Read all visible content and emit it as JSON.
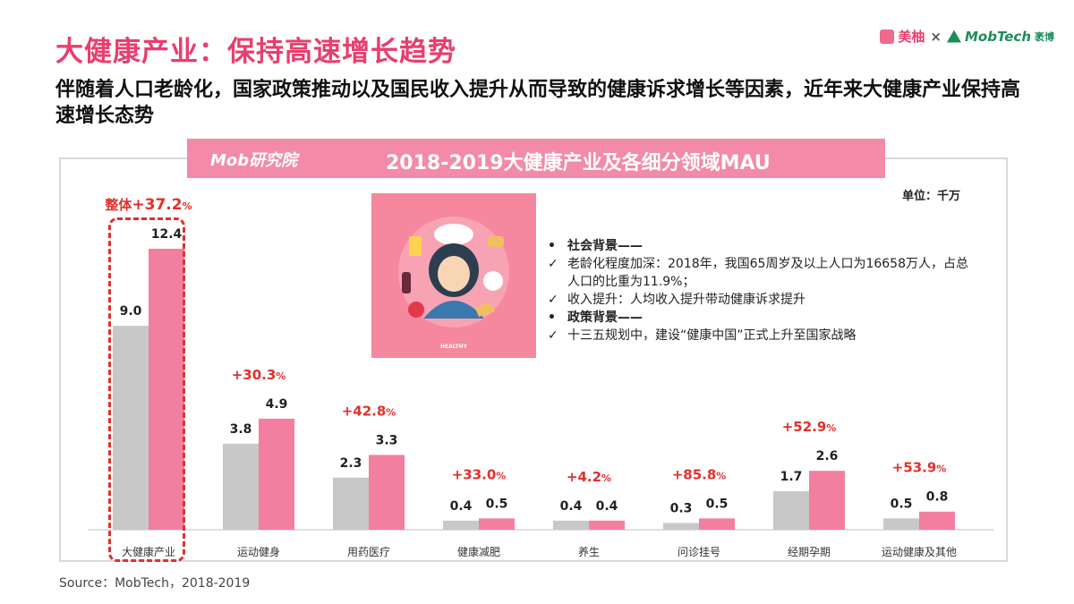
{
  "header": {
    "title": "大健康产业：保持高速增长趋势",
    "subtitle": "伴随着人口老龄化，国家政策推动以及国民收入提升从而导致的健康诉求增长等因素，近年来大健康产业保持高速增长态势"
  },
  "logos": {
    "partner": "美柚",
    "separator": "×",
    "brand": "MobTech",
    "brand_suffix": "袤博"
  },
  "banner": {
    "logo_text": "Mob研究院",
    "title": "2018-2019大健康产业及各细分领域MAU"
  },
  "unit": "单位：千万",
  "illustration": {
    "caption": "HEALTHY"
  },
  "notes": [
    {
      "marker": "•",
      "text": "社会背景——",
      "bold": true
    },
    {
      "marker": "✓",
      "text": "老龄化程度加深：2018年，我国65周岁及以上人口为16658万人，占总人口的比重为11.9%；",
      "bold": false
    },
    {
      "marker": "✓",
      "text": "收入提升：人均收入提升带动健康诉求提升",
      "bold": false
    },
    {
      "marker": "•",
      "text": "政策背景——",
      "bold": true
    },
    {
      "marker": "✓",
      "text": "十三五规划中，建设“健康中国”正式上升至国家战略",
      "bold": false
    }
  ],
  "source": "Source：MobTech，2018-2019",
  "colors": {
    "accent": "#e83e6e",
    "series_2018": "#c8c8c8",
    "series_2019": "#f27fa0",
    "growth": "#e0302b",
    "banner": "#f28aa8"
  },
  "chart_data": {
    "type": "bar",
    "title": "2018-2019大健康产业及各细分领域MAU",
    "unit": "千万",
    "categories": [
      "大健康产业",
      "运动健身",
      "用药医疗",
      "健康减肥",
      "养生",
      "问诊挂号",
      "经期孕期",
      "运动健康及其他"
    ],
    "series": [
      {
        "values": [
          9.0,
          3.8,
          2.3,
          0.4,
          0.4,
          0.3,
          1.7,
          0.5
        ]
      },
      {
        "values": [
          12.4,
          4.9,
          3.3,
          0.5,
          0.4,
          0.5,
          2.6,
          0.8
        ]
      }
    ],
    "value_labels": [
      [
        "9.0",
        "3.8",
        "2.3",
        "0.4",
        "0.4",
        "0.3",
        "1.7",
        "0.5"
      ],
      [
        "12.4",
        "4.9",
        "3.3",
        "0.5",
        "0.4",
        "0.5",
        "2.6",
        "0.8"
      ]
    ],
    "growth_labels": [
      "+37.2",
      "+30.3",
      "+42.8",
      "+33.0",
      "+4.2",
      "+85.8",
      "+52.9",
      "+53.9"
    ],
    "growth_suffix": "%",
    "overall_prefix": "整体",
    "highlight_category": "大健康产业",
    "ylim": [
      0,
      12.4
    ]
  }
}
